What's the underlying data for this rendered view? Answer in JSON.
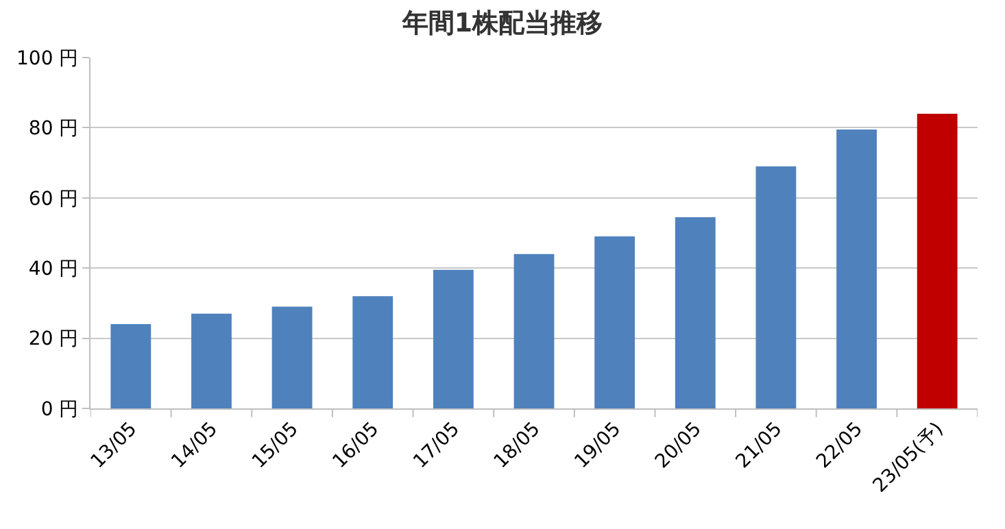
{
  "chart_data": {
    "type": "bar",
    "title": "年間1株配当推移",
    "categories": [
      "13/05",
      "14/05",
      "15/05",
      "16/05",
      "17/05",
      "18/05",
      "19/05",
      "20/05",
      "21/05",
      "22/05",
      "23/05(予)"
    ],
    "values": [
      24,
      27,
      29,
      32,
      39.5,
      44,
      49,
      54.5,
      69,
      79.5,
      84
    ],
    "colors": [
      "#4f81bd",
      "#4f81bd",
      "#4f81bd",
      "#4f81bd",
      "#4f81bd",
      "#4f81bd",
      "#4f81bd",
      "#4f81bd",
      "#4f81bd",
      "#4f81bd",
      "#c00000"
    ],
    "ylim": [
      0,
      100
    ],
    "yticks": [
      {
        "value": 0,
        "label": "0 円"
      },
      {
        "value": 20,
        "label": "20 円"
      },
      {
        "value": 40,
        "label": "40 円"
      },
      {
        "value": 60,
        "label": "60 円"
      },
      {
        "value": 80,
        "label": "80 円"
      },
      {
        "value": 100,
        "label": "100 円"
      }
    ],
    "grid": "y"
  }
}
